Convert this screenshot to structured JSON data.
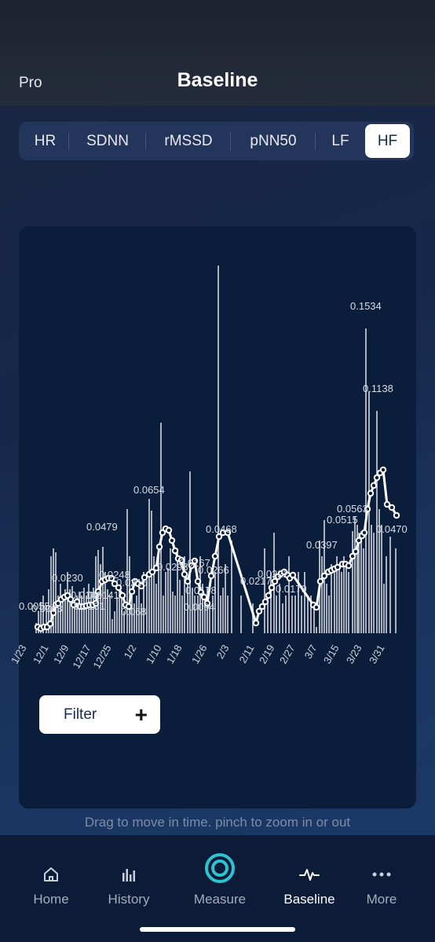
{
  "header": {
    "left_label": "Pro",
    "title": "Baseline"
  },
  "segments": [
    "HR",
    "SDNN",
    "rMSSD",
    "pNN50",
    "LF",
    "HF"
  ],
  "selected_segment": "HF",
  "chart_data": {
    "type": "line",
    "x_tick_labels": [
      "1/23",
      "12/1",
      "12/9",
      "12/17",
      "12/25",
      "1/2",
      "1/10",
      "1/18",
      "1/26",
      "2/3",
      "2/11",
      "2/19",
      "2/27",
      "3/7",
      "3/15",
      "3/23",
      "3/31"
    ],
    "point_labels": [
      "0.0055",
      "0.0063",
      "0.0142",
      "0.0230",
      "0.0141",
      "0.0131",
      "0.0248",
      "0.0215",
      "0.068",
      "0.0479",
      "0.0654",
      "0.0293",
      "0.0167",
      "0.0178",
      "0.0094",
      "0.0266",
      "0.0468",
      "0.0217",
      "0.0222",
      "0.0179",
      "0.0397",
      "0.0515",
      "0.0563",
      "0.1534",
      "0.1138",
      "0.0470"
    ],
    "series": [
      {
        "name": "",
        "type": "bar"
      },
      {
        "name": "",
        "type": "line"
      }
    ],
    "colors": {
      "line": "#ffffff",
      "bars": "#c8ccd6",
      "background": "#0a1d3a"
    },
    "grid": false
  },
  "filter": {
    "label": "Filter"
  },
  "hint": "Drag to move in time. pinch to zoom in or out",
  "tabs": [
    {
      "label": "Home",
      "icon": "home-icon"
    },
    {
      "label": "History",
      "icon": "bar-chart-icon"
    },
    {
      "label": "Measure",
      "icon": "measure-ring-icon"
    },
    {
      "label": "Baseline",
      "icon": "pulse-icon"
    },
    {
      "label": "More",
      "icon": "more-dots-icon"
    }
  ],
  "active_tab": "Baseline",
  "accent_color": "#2ec4cf"
}
